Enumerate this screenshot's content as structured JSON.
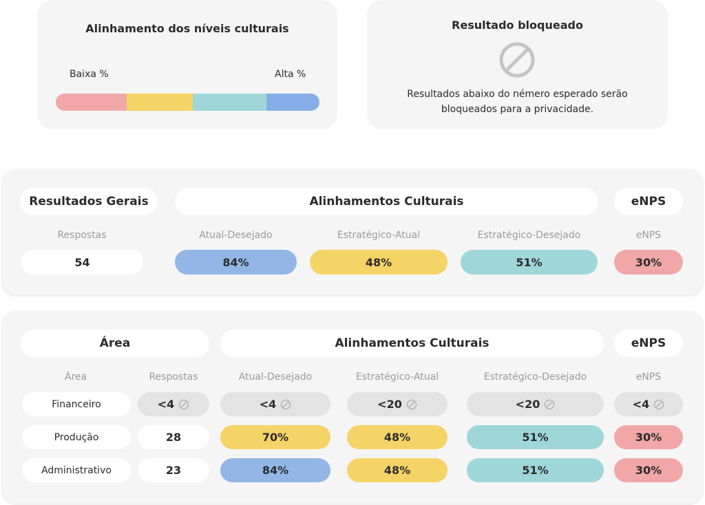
{
  "legend": {
    "title": "Alinhamento dos níveis culturais",
    "low_label": "Baixa %",
    "high_label": "Alta %",
    "scale_colors": [
      "#f1a7a7",
      "#f4d467",
      "#9fd6da",
      "#86aee6"
    ]
  },
  "blocked": {
    "title": "Resultado bloqueado",
    "icon": "ban-icon",
    "line1": "Resultados abaixo do némero esperado serão",
    "line2": "bloqueados para a privacidade."
  },
  "overview": {
    "header_results": "Resultados Gerais",
    "header_alignments": "Alinhamentos Culturais",
    "header_enps": "eNPS",
    "col_responses": "Respostas",
    "col_atual_desejado": "Atual-Desejado",
    "col_estrategico_atual": "Estratégico-Atual",
    "col_estrategico_desejado": "Estratégico-Desejado",
    "col_enps": "eNPS",
    "responses": "54",
    "atual_desejado": "84%",
    "estrategico_atual": "48%",
    "estrategico_desejado": "51%",
    "enps": "30%"
  },
  "areas": {
    "header_area": "Área",
    "header_alignments": "Alinhamentos Culturais",
    "header_enps": "eNPS",
    "col_area": "Área",
    "col_responses": "Respostas",
    "col_atual_desejado": "Atual-Desejado",
    "col_estrategico_atual": "Estratégico-Atual",
    "col_estrategico_desejado": "Estratégico-Desejado",
    "col_enps": "eNPS",
    "rows": [
      {
        "area": "Financeiro",
        "responses": "<4",
        "atual_desejado": "<4",
        "estrategico_atual": "<20",
        "estrategico_desejado": "<20",
        "enps": "<4"
      },
      {
        "area": "Produção",
        "responses": "28",
        "atual_desejado": "70%",
        "estrategico_atual": "48%",
        "estrategico_desejado": "51%",
        "enps": "30%"
      },
      {
        "area": "Administrativo",
        "responses": "23",
        "atual_desejado": "84%",
        "estrategico_atual": "48%",
        "estrategico_desejado": "51%",
        "enps": "30%"
      }
    ]
  }
}
